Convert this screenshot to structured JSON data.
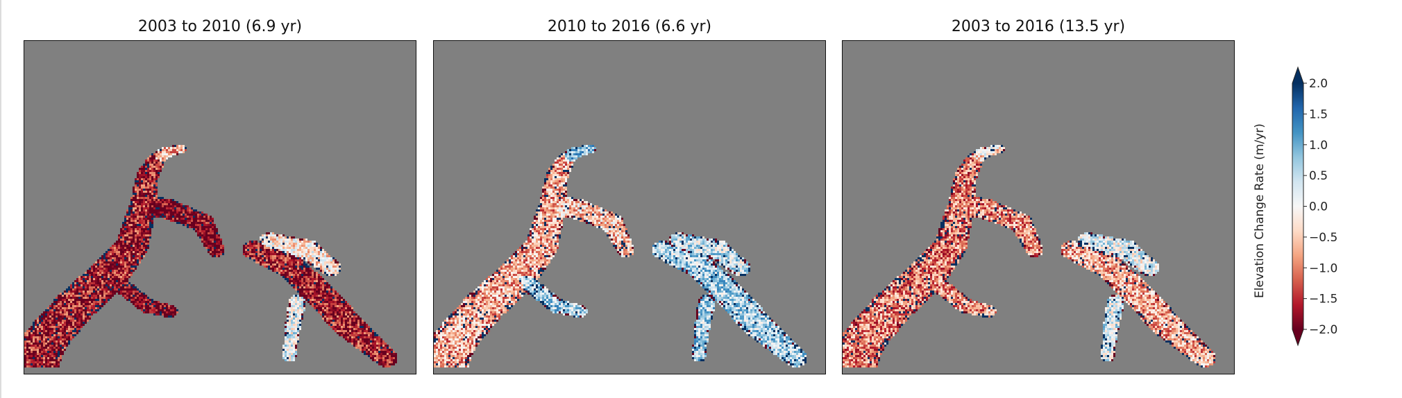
{
  "chart_data": [
    {
      "type": "heatmap",
      "title": "2003 to 2010 (6.9 yr)",
      "overall_tendency": "strong thinning (dark red)"
    },
    {
      "type": "heatmap",
      "title": "2010 to 2016 (6.6 yr)",
      "overall_tendency": "mixed, light thickening in east lobe (light blue)"
    },
    {
      "type": "heatmap",
      "title": "2003 to 2016 (13.5 yr)",
      "overall_tendency": "moderate thinning (red), blue noise on edges"
    }
  ],
  "colorbar": {
    "label": "Elevation Change Rate (m/yr)",
    "ticks": [
      "2.0",
      "1.5",
      "1.0",
      "0.5",
      "0.0",
      "−0.5",
      "−1.0",
      "−1.5",
      "−2.0"
    ],
    "tick_values": [
      2.0,
      1.5,
      1.0,
      0.5,
      0.0,
      -0.5,
      -1.0,
      -1.5,
      -2.0
    ],
    "range": [
      -2.0,
      2.0
    ],
    "extend": "both",
    "colormap": "RdBu",
    "colors": [
      "#67001f",
      "#b2182b",
      "#d6604d",
      "#f4a582",
      "#fddbc7",
      "#f7f7f7",
      "#d1e5f0",
      "#92c5de",
      "#4393c3",
      "#2166ac",
      "#053061"
    ]
  },
  "background_color": "#808080"
}
